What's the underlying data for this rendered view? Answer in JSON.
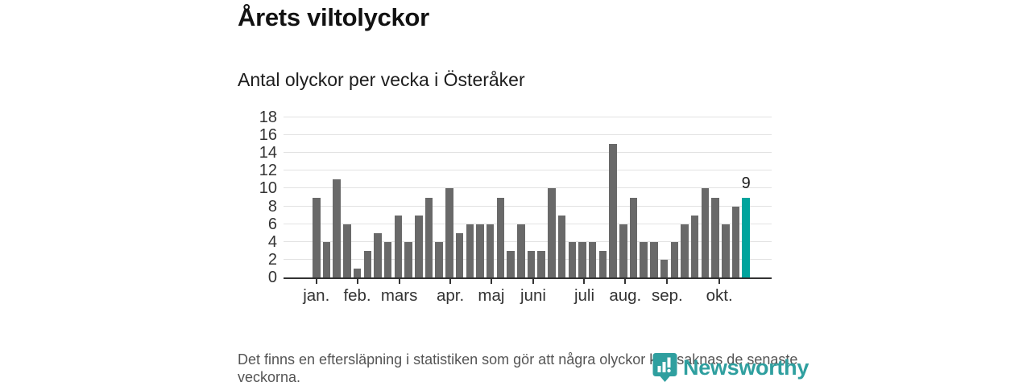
{
  "header": {
    "title": "Årets viltolyckor",
    "subtitle": "Antal olyckor per vecka i Österåker"
  },
  "chart_data": {
    "type": "bar",
    "title": "Årets viltolyckor",
    "subtitle": "Antal olyckor per vecka i Österåker",
    "x_unit": "vecka (weeks 1–43)",
    "values": [
      9,
      4,
      11,
      6,
      1,
      3,
      5,
      4,
      7,
      4,
      7,
      9,
      4,
      10,
      5,
      6,
      6,
      6,
      9,
      3,
      6,
      3,
      3,
      10,
      7,
      4,
      4,
      4,
      3,
      15,
      6,
      9,
      4,
      4,
      2,
      4,
      6,
      7,
      10,
      9,
      6,
      8,
      9
    ],
    "highlight_index": 42,
    "highlight_value_label": "9",
    "y_ticks": [
      0,
      2,
      4,
      6,
      8,
      10,
      12,
      14,
      16,
      18
    ],
    "ylim": [
      0,
      18
    ],
    "x_ticks": [
      {
        "label": "jan.",
        "week": 1.0
      },
      {
        "label": "feb.",
        "week": 5.0
      },
      {
        "label": "mars",
        "week": 9.1
      },
      {
        "label": "apr.",
        "week": 14.1
      },
      {
        "label": "maj",
        "week": 18.1
      },
      {
        "label": "juni",
        "week": 22.2
      },
      {
        "label": "juli",
        "week": 27.2
      },
      {
        "label": "aug.",
        "week": 31.2
      },
      {
        "label": "sep.",
        "week": 35.3
      },
      {
        "label": "okt.",
        "week": 40.4
      }
    ],
    "grid": true,
    "legend": false,
    "bar_color": "#696969",
    "highlight_color": "#00a49d"
  },
  "footer": {
    "note": "Det finns en eftersläpning i statistiken som gör att några olyckor kan saknas de senaste veckorna."
  },
  "logo": {
    "text": "Newsworthy",
    "color": "#2f9f9f"
  }
}
